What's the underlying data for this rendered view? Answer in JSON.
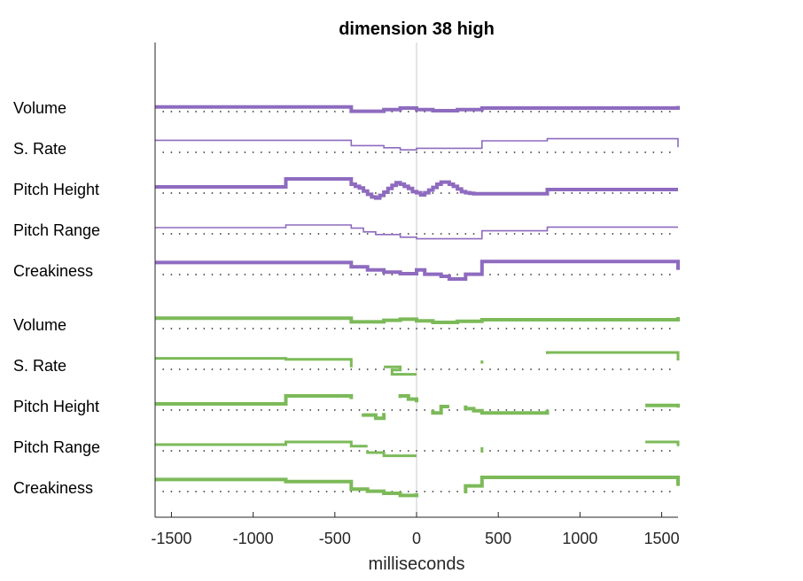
{
  "chart_data": {
    "type": "line",
    "title": "dimension 38 high",
    "xlabel": "milliseconds",
    "ylabel": "",
    "xlim": [
      -1600,
      1600
    ],
    "xticks": [
      -1500,
      -1000,
      -500,
      0,
      500,
      1000,
      1500
    ],
    "xtick_labels": [
      "-1500",
      "-1000",
      "-500",
      "0",
      "500",
      "1000",
      "1500"
    ],
    "grid": false,
    "center_line_at": 0,
    "baseline_dots_spacing_ms": 50,
    "colors": {
      "purple": "#8e6bbf",
      "green": "#7cba59",
      "center_line": "#c8c8c8",
      "dots": "#333333"
    },
    "groups": [
      {
        "color": "purple",
        "rows": [
          {
            "label": "Volume",
            "weight": "thick",
            "segments": [
              {
                "x": [
                  -1600,
                  -400,
                  -400,
                  -200,
                  -200,
                  -100,
                  -100,
                  0,
                  0,
                  100,
                  100,
                  250,
                  250,
                  400,
                  400,
                  1600,
                  1600
                ],
                "y": [
                  0.2,
                  0.2,
                  -0.6,
                  -0.6,
                  -0.3,
                  -0.3,
                  0,
                  0,
                  -0.3,
                  -0.3,
                  -0.5,
                  -0.5,
                  -0.3,
                  -0.3,
                  0,
                  0,
                  0.4
                ]
              }
            ]
          },
          {
            "label": "S. Rate",
            "weight": "thin",
            "segments": [
              {
                "x": [
                  -1600,
                  -400,
                  -400,
                  -200,
                  -200,
                  -100,
                  -100,
                  0,
                  0,
                  400,
                  400,
                  800,
                  800,
                  1600,
                  1600
                ],
                "y": [
                  1.6,
                  1.6,
                  0.6,
                  0.6,
                  0.2,
                  0.2,
                  -0.2,
                  -0.2,
                  0.1,
                  0.1,
                  1.5,
                  1.5,
                  1.9,
                  1.9,
                  0.3
                ]
              }
            ]
          },
          {
            "label": "Pitch Height",
            "weight": "thick",
            "segments": [
              {
                "x": [
                  -1600,
                  -800,
                  -800,
                  -400,
                  -400,
                  -375,
                  -375,
                  -350,
                  -350,
                  -325,
                  -325,
                  -300,
                  -300,
                  -275,
                  -275,
                  -250,
                  -250,
                  -225,
                  -225,
                  -200,
                  -200,
                  -175,
                  -175,
                  -150,
                  -150,
                  -125,
                  -125,
                  -100,
                  -100,
                  -75,
                  -75,
                  -50,
                  -50,
                  -25,
                  -25,
                  0,
                  0,
                  25,
                  25,
                  50,
                  50,
                  75,
                  75,
                  100,
                  100,
                  125,
                  125,
                  150,
                  150,
                  175,
                  175,
                  200,
                  200,
                  225,
                  225,
                  250,
                  250,
                  275,
                  275,
                  300,
                  300,
                  325,
                  325,
                  350,
                  350,
                  375,
                  375,
                  400,
                  400,
                  800,
                  800,
                  1600
                ],
                "y": [
                  0.5,
                  0.5,
                  2.0,
                  2.0,
                  1.0,
                  1.0,
                  0.6,
                  0.6,
                  0.3,
                  0.3,
                  -0.3,
                  -0.3,
                  -0.9,
                  -0.9,
                  -1.4,
                  -1.4,
                  -1.6,
                  -1.6,
                  -1.1,
                  -1.1,
                  -0.5,
                  -0.5,
                  0.2,
                  0.2,
                  0.8,
                  0.8,
                  1.3,
                  1.3,
                  1.0,
                  1.0,
                  0.6,
                  0.6,
                  0.2,
                  0.2,
                  -0.4,
                  -0.4,
                  -0.6,
                  -0.6,
                  -1.0,
                  -1.0,
                  -0.6,
                  -0.6,
                  -0.1,
                  -0.1,
                  0.4,
                  0.4,
                  1.0,
                  1.0,
                  1.4,
                  1.4,
                  1.4,
                  1.4,
                  1.0,
                  1.0,
                  0.6,
                  0.6,
                  0.1,
                  0.1,
                  -0.4,
                  -0.4,
                  -0.6,
                  -0.6,
                  -0.7,
                  -0.7,
                  -0.8,
                  -0.8,
                  -0.8,
                  -0.8,
                  -0.8,
                  -0.8,
                  0.0,
                  0.0
                ]
              }
            ]
          },
          {
            "label": "Pitch Range",
            "weight": "thin",
            "segments": [
              {
                "x": [
                  -1600,
                  -800,
                  -800,
                  -400,
                  -400,
                  -325,
                  -325,
                  -250,
                  -250,
                  -100,
                  -100,
                  0,
                  0,
                  400,
                  400,
                  800,
                  800,
                  1600
                ],
                "y": [
                  0.5,
                  0.5,
                  1.0,
                  1.0,
                  0.4,
                  0.4,
                  -0.3,
                  -0.3,
                  -0.8,
                  -0.8,
                  -1.3,
                  -1.3,
                  -1.6,
                  -1.6,
                  -0.1,
                  -0.1,
                  0.6,
                  0.6
                ]
              }
            ]
          },
          {
            "label": "Creakiness",
            "weight": "thick",
            "segments": [
              {
                "x": [
                  -1600,
                  -400,
                  -400,
                  -300,
                  -300,
                  -200,
                  -200,
                  -100,
                  -100,
                  0,
                  0,
                  50,
                  50,
                  150,
                  150,
                  200,
                  200,
                  300,
                  300,
                  400,
                  400,
                  1600,
                  1600
                ],
                "y": [
                  1.6,
                  1.6,
                  0.8,
                  0.8,
                  0.2,
                  0.2,
                  -0.2,
                  -0.2,
                  -0.5,
                  -0.5,
                  0.2,
                  0.2,
                  -0.6,
                  -0.6,
                  -1.0,
                  -1.0,
                  -1.5,
                  -1.5,
                  -0.6,
                  -0.6,
                  1.8,
                  1.8,
                  0.2
                ]
              }
            ]
          }
        ]
      },
      {
        "color": "green",
        "rows": [
          {
            "label": "Volume",
            "weight": "thick",
            "segments": [
              {
                "x": [
                  -1600,
                  -400,
                  -400,
                  -200,
                  -200,
                  -100,
                  -100,
                  0,
                  0,
                  100,
                  100,
                  250,
                  250,
                  400,
                  400,
                  1600,
                  1600
                ],
                "y": [
                  1.3,
                  1.3,
                  0.6,
                  0.6,
                  0.9,
                  0.9,
                  1.1,
                  1.1,
                  0.8,
                  0.8,
                  0.5,
                  0.5,
                  0.7,
                  0.7,
                  1.0,
                  1.0,
                  1.5
                ]
              }
            ]
          },
          {
            "label": "S. Rate",
            "weight": "medium",
            "segments": [
              {
                "x": [
                  -1600,
                  -800,
                  -800,
                  -400,
                  -400
                ],
                "y": [
                  1.4,
                  1.4,
                  1.2,
                  1.2,
                  -0.3
                ]
              },
              {
                "x": [
                  -200,
                  -100,
                  -100,
                  -150,
                  -150,
                  0
                ],
                "y": [
                  -0.2,
                  -0.2,
                  -0.8,
                  -0.8,
                  -1.6,
                  -1.6
                ]
              },
              {
                "x": [
                  400,
                  400
                ],
                "y": [
                  0.4,
                  1.0
                ]
              },
              {
                "x": [
                  800,
                  800,
                  1600,
                  1600
                ],
                "y": [
                  2.2,
                  2.5,
                  2.5,
                  1.0
                ]
              }
            ]
          },
          {
            "label": "Pitch Height",
            "weight": "thick",
            "segments": [
              {
                "x": [
                  -1600,
                  -800,
                  -800,
                  -400,
                  -400
                ],
                "y": [
                  0.5,
                  0.5,
                  2.0,
                  2.0,
                  1.4
                ]
              },
              {
                "x": [
                  -325,
                  -325,
                  -250,
                  -250,
                  -200,
                  -200
                ],
                "y": [
                  -1.3,
                  -1.6,
                  -1.6,
                  -2.2,
                  -2.2,
                  -1.2
                ]
              },
              {
                "x": [
                  -100,
                  -100,
                  -50,
                  -50,
                  0,
                  0
                ],
                "y": [
                  1.6,
                  2.0,
                  2.0,
                  1.4,
                  1.4,
                  0.8
                ]
              },
              {
                "x": [
                  100,
                  100,
                  150,
                  150,
                  200
                ],
                "y": [
                  -0.6,
                  -1.2,
                  -1.2,
                  0.0,
                  0.0
                ]
              },
              {
                "x": [
                  300,
                  300,
                  350,
                  350,
                  400,
                  400,
                  800,
                  800
                ],
                "y": [
                  0.2,
                  -0.4,
                  -0.4,
                  -0.8,
                  -0.8,
                  -1.2,
                  -1.2,
                  -0.6
                ]
              },
              {
                "x": [
                  1400,
                  1600,
                  1600
                ],
                "y": [
                  0.2,
                  0.2,
                  -0.2
                ]
              }
            ]
          },
          {
            "label": "Pitch Range",
            "weight": "medium",
            "segments": [
              {
                "x": [
                  -1600,
                  -800,
                  -800,
                  -400,
                  -400,
                  -300
                ],
                "y": [
                  0.5,
                  0.5,
                  1.0,
                  1.0,
                  0.2,
                  0.2
                ]
              },
              {
                "x": [
                  -300,
                  -300,
                  -200,
                  -200,
                  0
                ],
                "y": [
                  -0.6,
                  -1.0,
                  -1.0,
                  -1.6,
                  -1.6
                ]
              },
              {
                "x": [
                  400,
                  400
                ],
                "y": [
                  0.0,
                  -1.0
                ]
              },
              {
                "x": [
                  1400,
                  1600,
                  1600
                ],
                "y": [
                  1.0,
                  1.0,
                  0.2
                ]
              }
            ]
          },
          {
            "label": "Creakiness",
            "weight": "thick",
            "segments": [
              {
                "x": [
                  -1600,
                  -800,
                  -800,
                  -400,
                  -400,
                  -300,
                  -300,
                  -200,
                  -200,
                  -100,
                  -100,
                  0,
                  0
                ],
                "y": [
                  1.6,
                  1.6,
                  1.2,
                  1.2,
                  -0.2,
                  -0.2,
                  -0.6,
                  -0.6,
                  -1.0,
                  -1.0,
                  -1.4,
                  -1.4,
                  -1.0
                ]
              },
              {
                "x": [
                  300,
                  300,
                  400,
                  400,
                  1600,
                  1600
                ],
                "y": [
                  -1.0,
                  0.4,
                  0.4,
                  2.0,
                  2.0,
                  0.4
                ]
              }
            ]
          }
        ]
      }
    ]
  }
}
